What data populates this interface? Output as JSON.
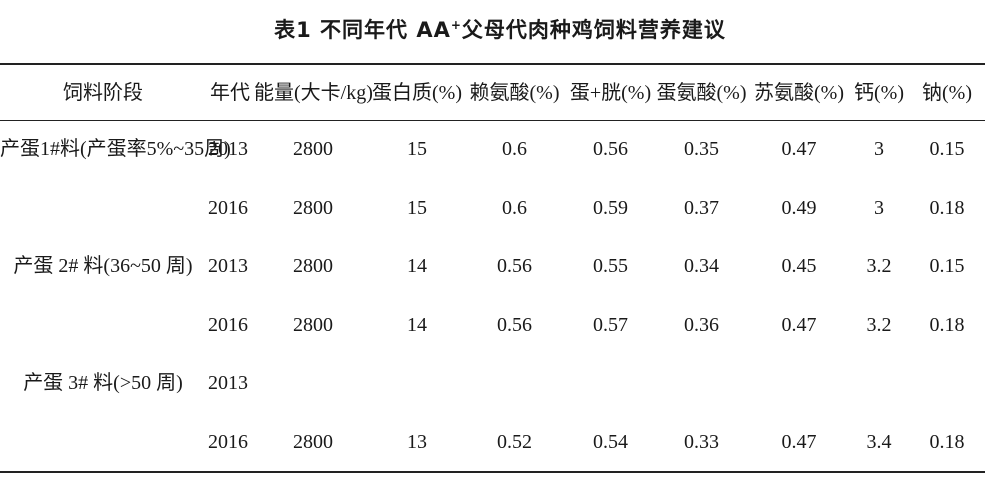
{
  "title": {
    "prefix": "表1  不同年代 AA",
    "superscript": "+",
    "suffix": "父母代肉种鸡饲料营养建议"
  },
  "table": {
    "headers": [
      "饲料阶段",
      "年代",
      "能量(大卡/kg)",
      "蛋白质(%)",
      "赖氨酸(%)",
      "蛋+胱(%)",
      "蛋氨酸(%)",
      "苏氨酸(%)",
      "钙(%)",
      "钠(%)"
    ],
    "rows": [
      [
        "产蛋1#料(产蛋率5%~35周)",
        "2013",
        "2800",
        "15",
        "0.6",
        "0.56",
        "0.35",
        "0.47",
        "3",
        "0.15"
      ],
      [
        "",
        "2016",
        "2800",
        "15",
        "0.6",
        "0.59",
        "0.37",
        "0.49",
        "3",
        "0.18"
      ],
      [
        "产蛋 2# 料(36~50 周)",
        "2013",
        "2800",
        "14",
        "0.56",
        "0.55",
        "0.34",
        "0.45",
        "3.2",
        "0.15"
      ],
      [
        "",
        "2016",
        "2800",
        "14",
        "0.56",
        "0.57",
        "0.36",
        "0.47",
        "3.2",
        "0.18"
      ],
      [
        "产蛋 3# 料(>50 周)",
        "2013",
        "",
        "",
        "",
        "",
        "",
        "",
        "",
        ""
      ],
      [
        "",
        "2016",
        "2800",
        "13",
        "0.52",
        "0.54",
        "0.33",
        "0.47",
        "3.4",
        "0.18"
      ]
    ]
  }
}
